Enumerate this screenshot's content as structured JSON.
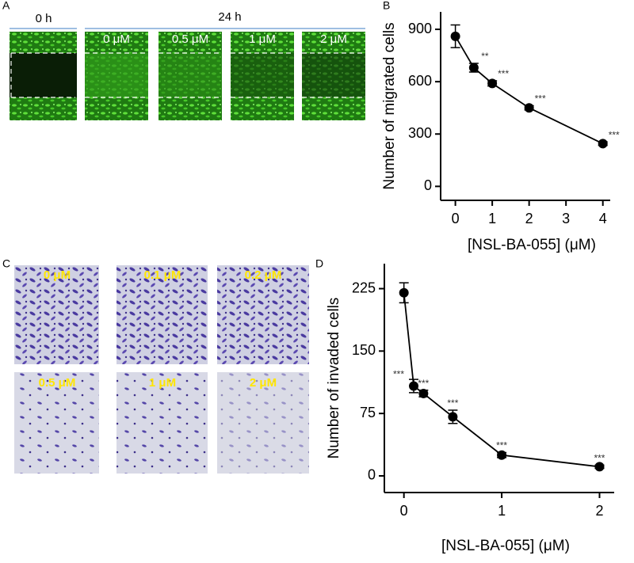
{
  "panels": {
    "a": "A",
    "b": "B",
    "c": "C",
    "d": "D"
  },
  "wound_assay": {
    "time_labels": [
      "0 h",
      "24 h"
    ],
    "image_labels": [
      "0 μM",
      "0.5 μM",
      "1 μM",
      "2 μM"
    ]
  },
  "invasion_assay": {
    "image_labels": [
      "0 μM",
      "0.1 μM",
      "0.2 μM",
      "0.5 μM",
      "1 μM",
      "2 μM"
    ]
  },
  "chart_data": [
    {
      "type": "line",
      "y_label": "Number of migrated cells",
      "x_label": "[NSL-BA-055] (μM)",
      "x": [
        0,
        0.5,
        1,
        2,
        4
      ],
      "values": [
        860,
        680,
        590,
        450,
        245
      ],
      "errors": [
        65,
        25,
        15,
        12,
        10
      ],
      "annotations": [
        null,
        "**",
        "***",
        "***",
        "***"
      ],
      "color": "#000000",
      "xlim": [
        -0.4,
        4.2
      ],
      "xticks": [
        0,
        1,
        2,
        3,
        4
      ],
      "ylim": [
        -80,
        1000
      ],
      "yticks": [
        0,
        300,
        600,
        900
      ]
    },
    {
      "type": "line",
      "y_label": "Number of invaded cells",
      "x_label": "[NSL-BA-055]   (μM)",
      "x": [
        0,
        0.1,
        0.2,
        0.5,
        1,
        2
      ],
      "values": [
        220,
        108,
        99,
        71,
        25,
        11
      ],
      "errors": [
        12,
        8,
        4,
        8,
        3,
        2
      ],
      "annotations": [
        null,
        "***",
        "***",
        "***",
        "***",
        "***"
      ],
      "color": "#000000",
      "xlim": [
        -0.2,
        2.15
      ],
      "xticks": [
        0,
        1,
        2
      ],
      "ylim": [
        -20,
        255
      ],
      "yticks": [
        0,
        75,
        150,
        225
      ]
    }
  ]
}
